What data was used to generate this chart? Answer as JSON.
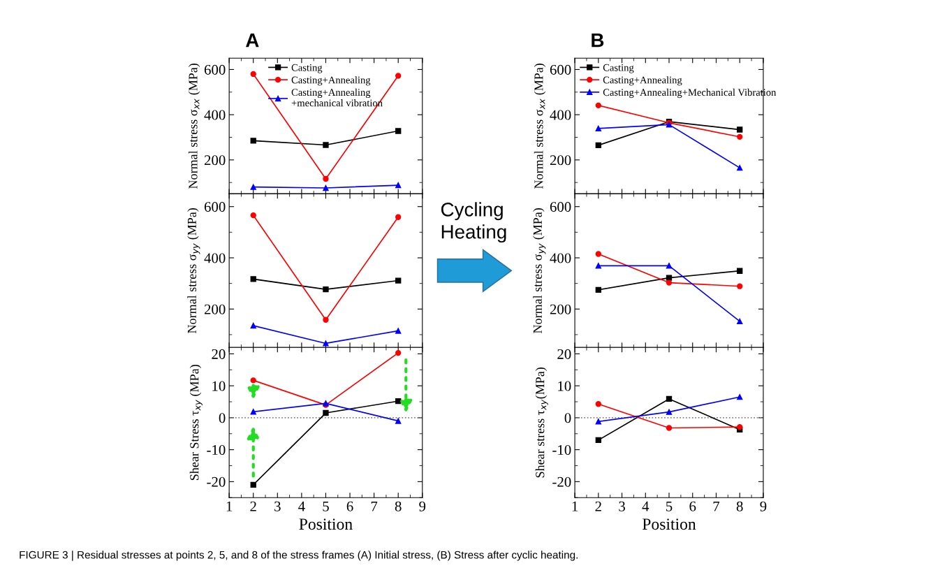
{
  "chart_data": [
    {
      "type": "line",
      "title": "A",
      "ylabel": "Normal stress σ$_{xx}$ (MPa)",
      "x": [
        2,
        5,
        8
      ],
      "xlim": [
        1,
        9
      ],
      "xticks": [
        1,
        2,
        3,
        4,
        5,
        6,
        7,
        8,
        9
      ],
      "ylim": [
        50,
        650
      ],
      "yticks": [
        200,
        400,
        600
      ],
      "tick_labels": "y",
      "legend": "top",
      "grid": false,
      "annotations": [
        "FIGURE 3 | Residual stresses at points 2, 5, and 8 of the stress frames (A) Initial stress, (B) Stress after cyclic heating."
      ],
      "series": [
        {
          "name": "Casting",
          "color": "#000000",
          "marker": "square",
          "values": [
            285,
            266,
            328
          ]
        },
        {
          "name": "Casting+Annealing",
          "color": "#ff0000",
          "marker": "circle",
          "values": [
            580,
            116,
            572
          ]
        },
        {
          "name": "Casting+Annealing\n+mechanical vibration",
          "color": "#0000ff",
          "marker": "triangle",
          "values": [
            80,
            76,
            88
          ]
        }
      ]
    },
    {
      "type": "line",
      "ylabel": "Normal stress σ$_{yy}$ (MPa)",
      "x": [
        2,
        5,
        8
      ],
      "xlim": [
        1,
        9
      ],
      "xticks": [
        1,
        2,
        3,
        4,
        5,
        6,
        7,
        8,
        9
      ],
      "ylim": [
        50,
        650
      ],
      "yticks": [
        200,
        400,
        600
      ],
      "tick_labels": "y",
      "grid": false,
      "series": [
        {
          "color": "#000000",
          "marker": "square",
          "values": [
            317,
            277,
            311
          ]
        },
        {
          "color": "#ff0000",
          "marker": "circle",
          "values": [
            566,
            158,
            559
          ]
        },
        {
          "color": "#0000ff",
          "marker": "triangle",
          "values": [
            135,
            66,
            115
          ]
        }
      ]
    },
    {
      "type": "line",
      "xlabel": "Position",
      "ylabel": "Shear Stress τ$_{xy}$ (MPa)",
      "x": [
        2,
        5,
        8
      ],
      "xlim": [
        1,
        9
      ],
      "xticks": [
        1,
        2,
        3,
        4,
        5,
        6,
        7,
        8,
        9
      ],
      "ylim": [
        -25,
        22
      ],
      "yticks": [
        -20,
        -10,
        0,
        10,
        20
      ],
      "grid": false,
      "ref_lines": [
        {
          "axis": "y",
          "value": 0,
          "color": "#808080",
          "line_style": "dotted"
        }
      ],
      "series": [
        {
          "color": "#000000",
          "marker": "square",
          "values": [
            -21,
            1.5,
            5.2
          ]
        },
        {
          "color": "#ff0000",
          "marker": "circle",
          "values": [
            11.7,
            4,
            20.3
          ]
        },
        {
          "color": "#0000ff",
          "marker": "triangle",
          "values": [
            1.9,
            4.5,
            -1
          ]
        }
      ]
    },
    {
      "type": "line",
      "title": "B",
      "ylabel": "Normal stress σ$_{xx}$ (MPa)",
      "x": [
        2,
        5,
        8
      ],
      "xlim": [
        1,
        9
      ],
      "xticks": [
        1,
        2,
        3,
        4,
        5,
        6,
        7,
        8,
        9
      ],
      "ylim": [
        50,
        650
      ],
      "yticks": [
        200,
        400,
        600
      ],
      "tick_labels": "y",
      "legend": "top left",
      "grid": false,
      "series": [
        {
          "name": "Casting",
          "color": "#000000",
          "marker": "square",
          "values": [
            265,
            369,
            334
          ]
        },
        {
          "name": "Casting+Annealing",
          "color": "#ff0000",
          "marker": "circle",
          "values": [
            441,
            364,
            302
          ]
        },
        {
          "name": "Casting+Annealing+Mechanical Vibration",
          "color": "#0000ff",
          "marker": "triangle",
          "values": [
            339,
            356,
            165
          ]
        }
      ]
    },
    {
      "type": "line",
      "ylabel": "Normal stress σ$_{yy}$ (MPa)",
      "x": [
        2,
        5,
        8
      ],
      "xlim": [
        1,
        9
      ],
      "xticks": [
        1,
        2,
        3,
        4,
        5,
        6,
        7,
        8,
        9
      ],
      "ylim": [
        50,
        650
      ],
      "yticks": [
        200,
        400,
        600
      ],
      "tick_labels": "y",
      "grid": false,
      "annotations": [
        "Cycling\nHeating"
      ],
      "series": [
        {
          "color": "#000000",
          "marker": "square",
          "values": [
            275,
            322,
            349
          ]
        },
        {
          "color": "#ff0000",
          "marker": "circle",
          "values": [
            415,
            303,
            289
          ]
        },
        {
          "color": "#0000ff",
          "marker": "triangle",
          "values": [
            369,
            369,
            152
          ]
        }
      ]
    },
    {
      "type": "line",
      "xlabel": "Position",
      "ylabel": "Shear stress τ$_{xy}$(MPa)",
      "x": [
        2,
        5,
        8
      ],
      "xlim": [
        1,
        9
      ],
      "xticks": [
        1,
        2,
        3,
        4,
        5,
        6,
        7,
        8,
        9
      ],
      "ylim": [
        -25,
        22
      ],
      "yticks": [
        -20,
        -10,
        0,
        10,
        20
      ],
      "grid": false,
      "ref_lines": [
        {
          "axis": "y",
          "value": 0,
          "color": "#808080",
          "line_style": "dotted"
        }
      ],
      "series": [
        {
          "color": "#000000",
          "marker": "square",
          "values": [
            -7,
            5.9,
            -3.7
          ]
        },
        {
          "color": "#ff0000",
          "marker": "circle",
          "values": [
            4.3,
            -3.2,
            -2.9
          ]
        },
        {
          "color": "#0000ff",
          "marker": "triangle",
          "values": [
            -1.2,
            1.8,
            6.5
          ]
        }
      ]
    }
  ]
}
